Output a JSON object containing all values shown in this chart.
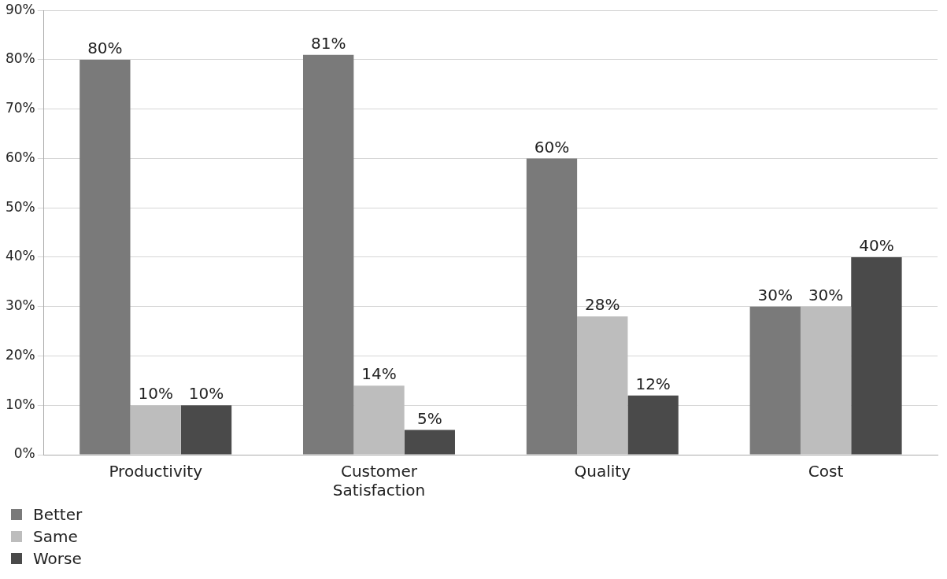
{
  "chart_data": {
    "type": "bar",
    "categories": [
      "Productivity",
      "Customer Satisfaction",
      "Quality",
      "Cost"
    ],
    "series": [
      {
        "name": "Better",
        "color": "#7a7a7a",
        "values": [
          80,
          81,
          60,
          30
        ],
        "value_labels": [
          "80%",
          "81%",
          "60%",
          "30%"
        ]
      },
      {
        "name": "Same",
        "color": "#bdbdbd",
        "values": [
          10,
          14,
          28,
          30
        ],
        "value_labels": [
          "10%",
          "14%",
          "28%",
          "30%"
        ]
      },
      {
        "name": "Worse",
        "color": "#4a4a4a",
        "values": [
          10,
          5,
          12,
          40
        ],
        "value_labels": [
          "10%",
          "5%",
          "12%",
          "40%"
        ]
      }
    ],
    "ylim": [
      0,
      90
    ],
    "yticks": [
      {
        "value": 0,
        "label": "0%"
      },
      {
        "value": 10,
        "label": "10%"
      },
      {
        "value": 20,
        "label": "20%"
      },
      {
        "value": 30,
        "label": "30%"
      },
      {
        "value": 40,
        "label": "40%"
      },
      {
        "value": 50,
        "label": "50%"
      },
      {
        "value": 60,
        "label": "60%"
      },
      {
        "value": 70,
        "label": "70%"
      },
      {
        "value": 80,
        "label": "80%"
      },
      {
        "value": 90,
        "label": "90%"
      }
    ],
    "grid": "y",
    "legend": "bottom left"
  }
}
